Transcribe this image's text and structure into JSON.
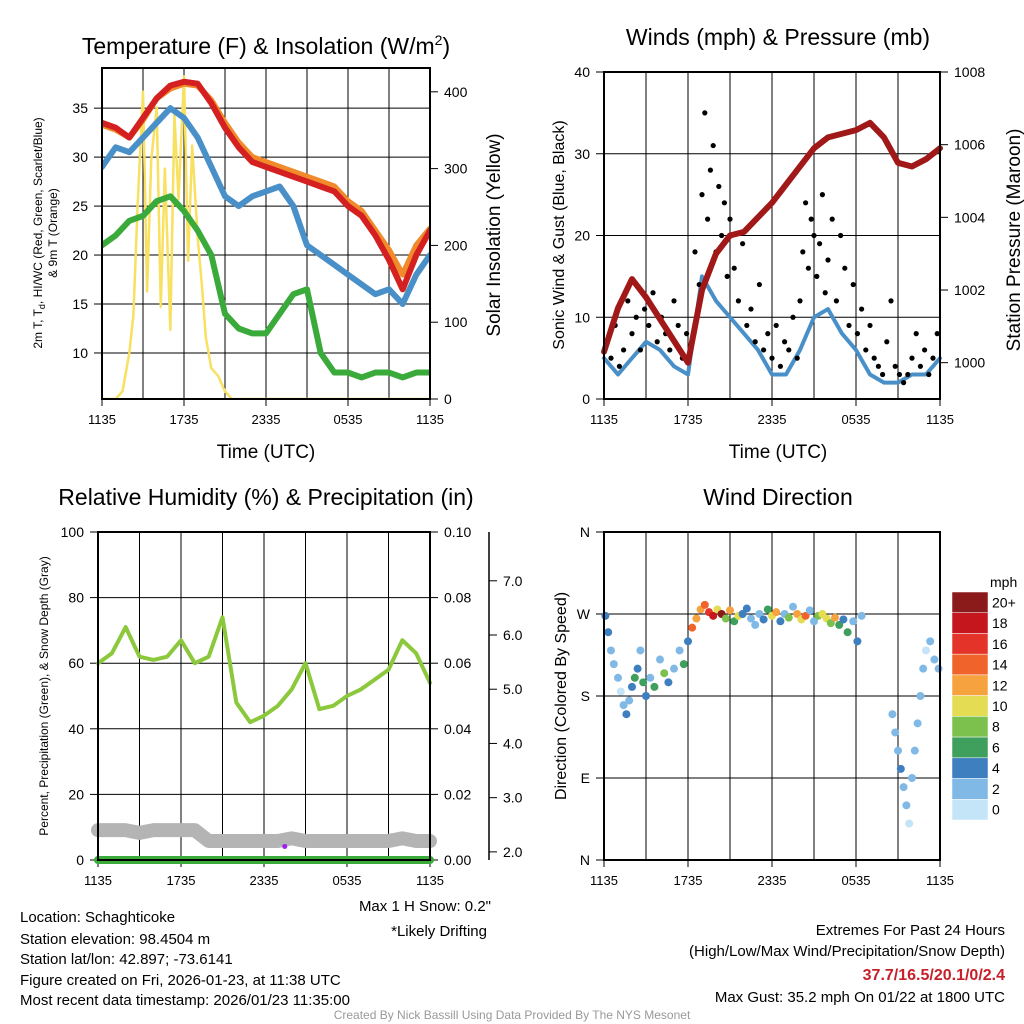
{
  "footer": {
    "location": "Location: Schaghticoke",
    "elevation": "Station elevation: 98.4504 m",
    "latlon": "Station lat/lon: 42.897; -73.6141",
    "created": "Figure created on Fri, 2026-01-23, at 11:38 UTC",
    "recent": "Most recent data timestamp: 2026/01/23 11:35:00",
    "max_snow": "Max 1 H Snow: 0.2\"",
    "drifting": "*Likely Drifting",
    "extremes_title": "Extremes For Past 24 Hours",
    "extremes_sub": "(High/Low/Max Wind/Precipitation/Snow Depth)",
    "extremes_values": "37.7/16.5/20.1/0/2.4",
    "max_gust": "Max Gust: 35.2 mph On 01/22 at 1800 UTC",
    "credit": "Created By Nick Bassill Using Data Provided By The NYS Mesonet"
  },
  "colors": {
    "red": "#d42020",
    "orange": "#f08a2a",
    "blue": "#4a90c8",
    "green": "#3aaa3a",
    "yellow": "#f8e060",
    "maroon": "#a01818",
    "rh": "#8cc83c",
    "snow": "#b4b4b4",
    "precip": "#3aaa3a",
    "drift": "#a020f0"
  },
  "chart_data": [
    {
      "type": "line",
      "title": "Temperature (F) & Insolation (W/m",
      "title_sup": "2",
      "title_end": ")",
      "xlabel": "Time (UTC)",
      "ylabel_line1": "2m T, T",
      "ylabel_sub": "d",
      "ylabel_line1_end": ", HI/WC (Red, Green, Scarlet/Blue)",
      "ylabel_line2": "& 9m T (Orange)",
      "y2label": "Solar Insolation (Yellow)",
      "xticks": [
        "1135",
        "1735",
        "2335",
        "0535",
        "1135"
      ],
      "yticks": [
        10,
        15,
        20,
        25,
        30,
        35
      ],
      "ylim": [
        5.3,
        39.1
      ],
      "y2ticks": [
        0,
        100,
        200,
        300,
        400
      ],
      "y2lim": [
        0,
        431
      ],
      "x_hours": [
        0,
        1,
        2,
        3,
        4,
        5,
        6,
        7,
        8,
        9,
        10,
        11,
        12,
        13,
        14,
        15,
        16,
        17,
        18,
        19,
        20,
        21,
        22,
        23,
        24
      ],
      "series": [
        {
          "name": "2m T",
          "color": "red",
          "values": [
            33.5,
            33,
            32,
            34,
            36,
            37.3,
            37.7,
            37.5,
            35.5,
            33,
            31,
            29.5,
            29,
            28.5,
            28,
            27.5,
            27,
            26.5,
            25,
            24,
            22,
            19.5,
            16.5,
            20,
            22.5
          ]
        },
        {
          "name": "9m T",
          "color": "orange",
          "values": [
            33.3,
            32.8,
            32,
            33.8,
            36,
            37,
            37.5,
            37.3,
            35.8,
            33.5,
            31.5,
            30,
            29.5,
            29,
            28.5,
            28,
            27.5,
            27,
            25.5,
            24.5,
            22.5,
            20.5,
            18,
            21,
            22.7
          ]
        },
        {
          "name": "HI/WC",
          "color": "blue",
          "values": [
            29,
            31,
            30.5,
            32,
            33.5,
            35,
            34,
            32,
            29,
            26,
            25,
            26,
            26.5,
            27,
            25,
            21,
            20,
            19,
            18,
            17,
            16,
            16.5,
            15,
            18,
            20
          ]
        },
        {
          "name": "Td",
          "color": "green",
          "values": [
            21,
            22,
            23.5,
            24,
            25.5,
            26,
            24.5,
            22.5,
            20,
            14,
            12.5,
            12,
            12,
            14,
            16,
            16.5,
            10,
            8,
            8,
            7.5,
            8,
            8,
            7.5,
            8,
            8
          ]
        }
      ],
      "solar": {
        "x_hours": [
          0,
          1,
          1.5,
          2,
          2.3,
          2.6,
          3,
          3.3,
          3.6,
          4,
          4.3,
          4.6,
          5,
          5.3,
          5.6,
          6,
          6.3,
          6.6,
          7,
          7.3,
          7.6,
          8,
          8.5,
          9,
          9.5,
          24
        ],
        "values": [
          0,
          0,
          10,
          60,
          110,
          250,
          400,
          140,
          310,
          380,
          120,
          300,
          90,
          370,
          260,
          420,
          180,
          330,
          210,
          150,
          80,
          40,
          30,
          10,
          0,
          0
        ]
      }
    },
    {
      "type": "line",
      "title": "Winds (mph) & Pressure (mb)",
      "xlabel": "Time (UTC)",
      "ylabel": "Sonic Wind & Gust (Blue, Black)",
      "y2label": "Station Pressure (Maroon)",
      "xticks": [
        "1135",
        "1735",
        "2335",
        "0535",
        "1135"
      ],
      "yticks": [
        0,
        10,
        20,
        30,
        40
      ],
      "ylim": [
        0,
        40
      ],
      "y2ticks": [
        1000,
        1002,
        1004,
        1006,
        1008
      ],
      "y2lim": [
        999,
        1008
      ],
      "x_hours": [
        0,
        1,
        2,
        3,
        4,
        5,
        6,
        7,
        8,
        9,
        10,
        11,
        12,
        13,
        14,
        15,
        16,
        17,
        18,
        19,
        20,
        21,
        22,
        23,
        24
      ],
      "series": [
        {
          "name": "Sonic Wind",
          "color": "blue",
          "values": [
            5,
            3,
            5,
            7,
            6,
            4,
            3,
            15,
            12,
            10,
            8,
            6,
            3,
            3,
            6,
            10,
            11,
            8,
            6,
            3,
            2,
            2,
            3,
            3,
            5
          ]
        },
        {
          "name": "Pressure",
          "color": "maroon",
          "values": [
            1000.3,
            1001.5,
            1002.3,
            1001.8,
            1001.2,
            1000.6,
            1000,
            1002,
            1003,
            1003.5,
            1003.6,
            1004,
            1004.4,
            1004.9,
            1005.4,
            1005.9,
            1006.2,
            1006.3,
            1006.4,
            1006.6,
            1006.2,
            1005.5,
            1005.4,
            1005.6,
            1005.9
          ]
        }
      ],
      "gusts": {
        "x_hours": [
          0.2,
          0.5,
          0.8,
          1.1,
          1.4,
          1.7,
          2,
          2.3,
          2.6,
          2.9,
          3.2,
          3.5,
          3.8,
          4.1,
          4.4,
          4.7,
          5,
          5.3,
          5.6,
          5.9,
          6.2,
          6.5,
          6.8,
          7,
          7.2,
          7.4,
          7.6,
          7.8,
          8,
          8.2,
          8.4,
          8.6,
          8.8,
          9,
          9.3,
          9.6,
          9.9,
          10.2,
          10.5,
          10.8,
          11.1,
          11.4,
          11.7,
          12,
          12.3,
          12.6,
          12.9,
          13.2,
          13.5,
          13.8,
          14,
          14.2,
          14.4,
          14.6,
          14.8,
          15,
          15.2,
          15.4,
          15.6,
          15.8,
          16,
          16.3,
          16.6,
          16.9,
          17.2,
          17.5,
          17.8,
          18.1,
          18.4,
          18.7,
          19,
          19.3,
          19.6,
          19.9,
          20.2,
          20.5,
          20.8,
          21.1,
          21.4,
          21.7,
          22,
          22.3,
          22.6,
          22.9,
          23.2,
          23.5,
          23.8
        ],
        "values": [
          7,
          5,
          9,
          4,
          6,
          12,
          8,
          10,
          6,
          11,
          9,
          13,
          7,
          10,
          8,
          6,
          12,
          9,
          5,
          8,
          6,
          18,
          14,
          25,
          35,
          22,
          28,
          31,
          18,
          26,
          20,
          24,
          15,
          22,
          16,
          12,
          19,
          9,
          11,
          7,
          14,
          6,
          8,
          5,
          9,
          4,
          7,
          6,
          10,
          5,
          12,
          18,
          24,
          16,
          22,
          20,
          15,
          19,
          25,
          13,
          17,
          22,
          12,
          20,
          16,
          9,
          14,
          8,
          11,
          6,
          9,
          5,
          4,
          3,
          7,
          12,
          4,
          3,
          2,
          3,
          5,
          8,
          4,
          6,
          3,
          5,
          8
        ]
      }
    },
    {
      "type": "line",
      "title": "Relative Humidity (%) & Precipitation (in)",
      "ylabel": "Percent, Precipitation (Green), & Snow Depth (Gray)",
      "xticks": [
        "1135",
        "1735",
        "2335",
        "0535",
        "1135"
      ],
      "yticks": [
        0,
        20,
        40,
        60,
        80,
        100
      ],
      "ylim": [
        0,
        100
      ],
      "y2ticks": [
        "0.00",
        "0.02",
        "0.04",
        "0.06",
        "0.08",
        "0.10"
      ],
      "y2lim": [
        0,
        0.1
      ],
      "y3ticks": [
        "2.0",
        "3.0",
        "4.0",
        "5.0",
        "6.0",
        "7.0"
      ],
      "y3lim": [
        1.85,
        7.9
      ],
      "x_hours": [
        0,
        1,
        2,
        3,
        4,
        5,
        6,
        7,
        8,
        9,
        10,
        11,
        12,
        13,
        14,
        15,
        16,
        17,
        18,
        19,
        20,
        21,
        22,
        23,
        24
      ],
      "series": [
        {
          "name": "RH",
          "color": "rh",
          "values": [
            60,
            63,
            71,
            62,
            61,
            62,
            67,
            60,
            62,
            74,
            48,
            42,
            44,
            47,
            52,
            60,
            46,
            47,
            50,
            52,
            55,
            58,
            67,
            63,
            54
          ]
        },
        {
          "name": "Precipitation",
          "color": "precip",
          "values": [
            0,
            0,
            0,
            0,
            0,
            0,
            0,
            0,
            0,
            0,
            0,
            0,
            0,
            0,
            0,
            0,
            0,
            0,
            0,
            0,
            0,
            0,
            0,
            0,
            0
          ]
        },
        {
          "name": "Snow Depth",
          "color": "snow",
          "values": [
            2.4,
            2.4,
            2.4,
            2.35,
            2.4,
            2.4,
            2.4,
            2.4,
            2.2,
            2.2,
            2.2,
            2.2,
            2.2,
            2.2,
            2.25,
            2.2,
            2.2,
            2.2,
            2.2,
            2.2,
            2.2,
            2.2,
            2.25,
            2.2,
            2.2
          ]
        }
      ],
      "drift_points": [
        {
          "x_hour": 13.5,
          "value": 2.1
        }
      ]
    },
    {
      "type": "scatter",
      "title": "Wind Direction",
      "ylabel": "Direction (Colored By Speed)",
      "xticks": [
        "1135",
        "1735",
        "2335",
        "0535",
        "1135"
      ],
      "ytick_labels": [
        "N",
        "E",
        "S",
        "W",
        "N"
      ],
      "yticks": [
        0,
        90,
        180,
        270,
        360
      ],
      "ylim": [
        0,
        360
      ],
      "legend": {
        "title": "mph",
        "labels": [
          "20+",
          "18",
          "16",
          "14",
          "12",
          "10",
          "8",
          "6",
          "4",
          "2",
          "0"
        ],
        "colors": [
          "#8b1a1a",
          "#c4161c",
          "#e4342a",
          "#f0642c",
          "#f6a23e",
          "#e4dc52",
          "#7cc04e",
          "#3f9f5c",
          "#3e7fc0",
          "#80b9e6",
          "#c4e4f8"
        ]
      },
      "points": [
        [
          0.1,
          268,
          4
        ],
        [
          0.3,
          250,
          5
        ],
        [
          0.5,
          230,
          3
        ],
        [
          0.7,
          215,
          2
        ],
        [
          1,
          200,
          2
        ],
        [
          1.2,
          185,
          1
        ],
        [
          1.4,
          170,
          3
        ],
        [
          1.6,
          160,
          4
        ],
        [
          1.8,
          175,
          3
        ],
        [
          2,
          190,
          5
        ],
        [
          2.2,
          200,
          6
        ],
        [
          2.4,
          210,
          4
        ],
        [
          2.6,
          230,
          3
        ],
        [
          2.8,
          195,
          7
        ],
        [
          3,
          180,
          4
        ],
        [
          3.3,
          200,
          3
        ],
        [
          3.6,
          190,
          6
        ],
        [
          4,
          220,
          2
        ],
        [
          4.3,
          205,
          8
        ],
        [
          4.6,
          195,
          5
        ],
        [
          5,
          210,
          3
        ],
        [
          5.4,
          230,
          2
        ],
        [
          5.7,
          215,
          6
        ],
        [
          6,
          240,
          4
        ],
        [
          6.3,
          255,
          15
        ],
        [
          6.6,
          265,
          13
        ],
        [
          6.9,
          275,
          12
        ],
        [
          7.2,
          280,
          14
        ],
        [
          7.5,
          272,
          16
        ],
        [
          7.8,
          268,
          18
        ],
        [
          8.1,
          275,
          11
        ],
        [
          8.4,
          270,
          20
        ],
        [
          8.7,
          265,
          8
        ],
        [
          9,
          274,
          13
        ],
        [
          9.3,
          262,
          6
        ],
        [
          9.6,
          268,
          10
        ],
        [
          9.9,
          270,
          5
        ],
        [
          10.2,
          276,
          4
        ],
        [
          10.5,
          265,
          3
        ],
        [
          10.8,
          258,
          2
        ],
        [
          11.1,
          270,
          3
        ],
        [
          11.4,
          264,
          4
        ],
        [
          11.7,
          275,
          6
        ],
        [
          12,
          268,
          10
        ],
        [
          12.3,
          272,
          12
        ],
        [
          12.6,
          262,
          4
        ],
        [
          12.9,
          270,
          3
        ],
        [
          13.2,
          266,
          8
        ],
        [
          13.5,
          278,
          2
        ],
        [
          13.8,
          270,
          12
        ],
        [
          14.1,
          264,
          10
        ],
        [
          14.4,
          268,
          14
        ],
        [
          14.7,
          274,
          3
        ],
        [
          15,
          262,
          2
        ],
        [
          15.3,
          268,
          9
        ],
        [
          15.6,
          270,
          11
        ],
        [
          15.9,
          265,
          10
        ],
        [
          16.2,
          260,
          8
        ],
        [
          16.5,
          266,
          12
        ],
        [
          16.8,
          258,
          6
        ],
        [
          17.1,
          264,
          4
        ],
        [
          17.4,
          250,
          6
        ],
        [
          17.8,
          262,
          3
        ],
        [
          18.1,
          240,
          5
        ],
        [
          18.4,
          268,
          2
        ],
        [
          20.6,
          160,
          2
        ],
        [
          20.8,
          140,
          3
        ],
        [
          21,
          120,
          2
        ],
        [
          21.2,
          100,
          4
        ],
        [
          21.4,
          80,
          3
        ],
        [
          21.6,
          60,
          2
        ],
        [
          21.8,
          40,
          1
        ],
        [
          22,
          90,
          2
        ],
        [
          22.2,
          120,
          3
        ],
        [
          22.4,
          150,
          2
        ],
        [
          22.6,
          180,
          3
        ],
        [
          22.8,
          210,
          2
        ],
        [
          23,
          230,
          1
        ],
        [
          23.3,
          240,
          2
        ],
        [
          23.6,
          220,
          3
        ],
        [
          23.9,
          210,
          2
        ]
      ]
    }
  ]
}
